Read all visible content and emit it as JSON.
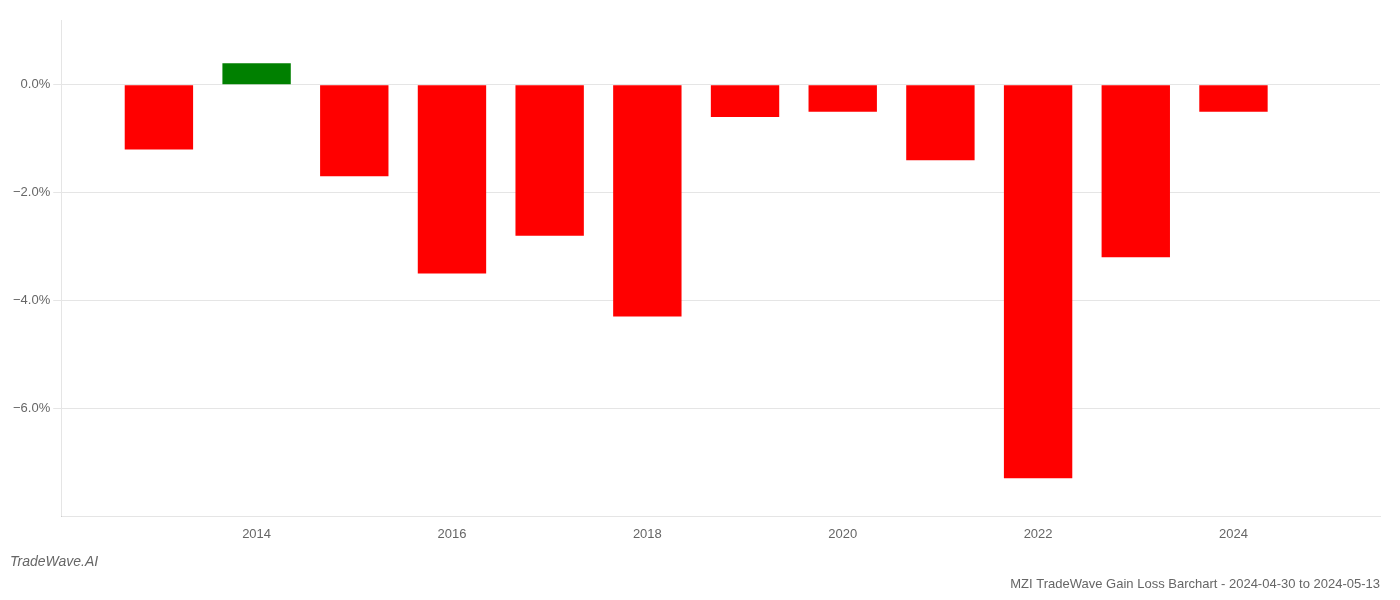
{
  "chart_data": {
    "type": "bar",
    "title": "MZI TradeWave Gain Loss Barchart - 2024-04-30 to 2024-05-13",
    "annotations": [
      "TradeWave.AI"
    ],
    "x": [
      2013,
      2014,
      2015,
      2016,
      2017,
      2018,
      2019,
      2020,
      2021,
      2022,
      2023,
      2024
    ],
    "values": [
      -0.012,
      0.004,
      -0.017,
      -0.035,
      -0.028,
      -0.043,
      -0.006,
      -0.005,
      -0.014,
      -0.073,
      -0.032,
      -0.005
    ],
    "colors": [
      "red",
      "green",
      "red",
      "red",
      "red",
      "red",
      "red",
      "red",
      "red",
      "red",
      "red",
      "red"
    ],
    "xlim": [
      2012.0,
      2025.5
    ],
    "xticks": [
      2014,
      2016,
      2018,
      2020,
      2022,
      2024
    ],
    "ylim": [
      -0.08,
      0.012
    ],
    "yticks": [
      {
        "value": 0.0,
        "label": "0.0%"
      },
      {
        "value": -0.02,
        "label": "−2.0%"
      },
      {
        "value": -0.04,
        "label": "−4.0%"
      },
      {
        "value": -0.06,
        "label": "−6.0%"
      }
    ],
    "grid": true
  }
}
